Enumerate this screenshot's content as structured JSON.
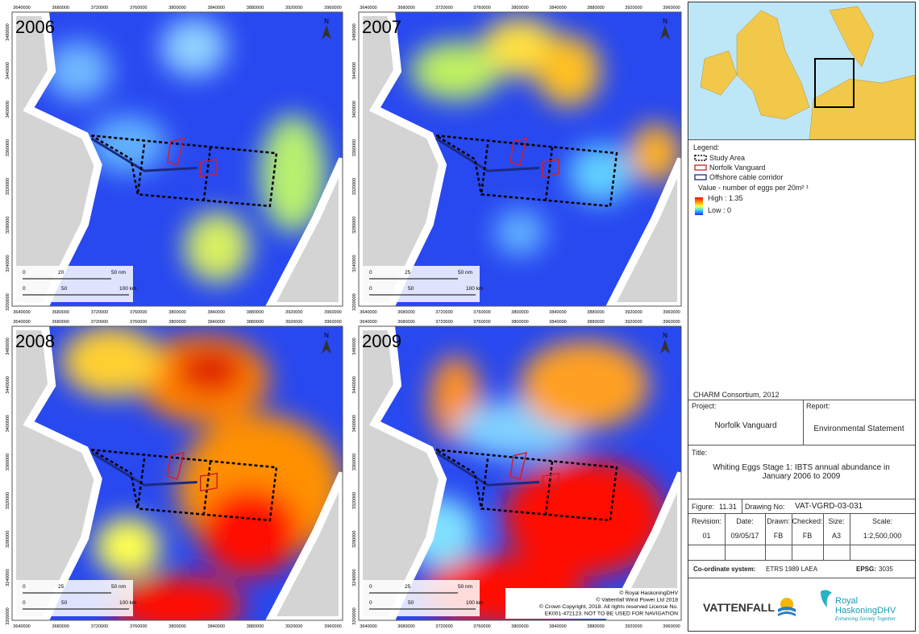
{
  "panels": [
    {
      "year": "2006",
      "scale_nm": [
        "0",
        "20",
        "50 nm"
      ],
      "scale_km": [
        "0",
        "50",
        "100 km"
      ]
    },
    {
      "year": "2007",
      "scale_nm": [
        "0",
        "25",
        "50 nm"
      ],
      "scale_km": [
        "0",
        "50",
        "100 km"
      ]
    },
    {
      "year": "2008",
      "scale_nm": [
        "0",
        "25",
        "50 nm"
      ],
      "scale_km": [
        "0",
        "50",
        "100 km"
      ]
    },
    {
      "year": "2009",
      "scale_nm": [
        "0",
        "25",
        "50 nm"
      ],
      "scale_km": [
        "0",
        "50",
        "100 km"
      ]
    }
  ],
  "x_ticks": [
    "3640000",
    "3680000",
    "3720000",
    "3760000",
    "3800000",
    "3840000",
    "3880000",
    "3920000",
    "3960000"
  ],
  "y_ticks": [
    "3480000",
    "3440000",
    "3400000",
    "3360000",
    "3320000",
    "3280000",
    "3240000",
    "3200000"
  ],
  "north": "N",
  "copyright": [
    "© Royal HaskoningDHV",
    "© Vattenfall Wind Power Ltd 2018",
    "© Crown Copyright, 2018. All rights reserved License No.",
    "EK001-472123. NOT TO BE USED FOR NAVIGATION"
  ],
  "legend": {
    "title": "Legend:",
    "items": [
      "Study Area",
      "Norfolk Vanguard",
      "Offshore cable corridor"
    ],
    "value_title": "Value - number of eggs per 20m² ¹",
    "high": "High : 1.35",
    "low": "Low : 0"
  },
  "source": "CHARM Consortium, 2012",
  "title_block": {
    "project_label": "Project:",
    "project": "Norfolk Vanguard",
    "report_label": "Report:",
    "report": "Environmental Statement",
    "title_label": "Title:",
    "title": "Whiting Eggs Stage 1: IBTS annual abundance in January 2006 to 2009",
    "figure_label": "Figure:",
    "figure": "11.31",
    "drawing_label": "Drawing No:",
    "drawing": "VAT-VGRD-03-031",
    "headers": [
      "Revision:",
      "Date:",
      "Drawn:",
      "Checked:",
      "Size:",
      "Scale:"
    ],
    "values": [
      "01",
      "09/05/17",
      "FB",
      "FB",
      "A3",
      "1:2,500,000"
    ],
    "coord_label": "Co-ordinate system:",
    "coord": "ETRS 1989 LAEA",
    "epsg_label": "EPSG:",
    "epsg": "3035"
  },
  "logos": {
    "vattenfall": "VATTENFALL",
    "royal": "Royal",
    "haskoning": "HaskoningDHV",
    "tagline": "Enhancing Society Together"
  }
}
